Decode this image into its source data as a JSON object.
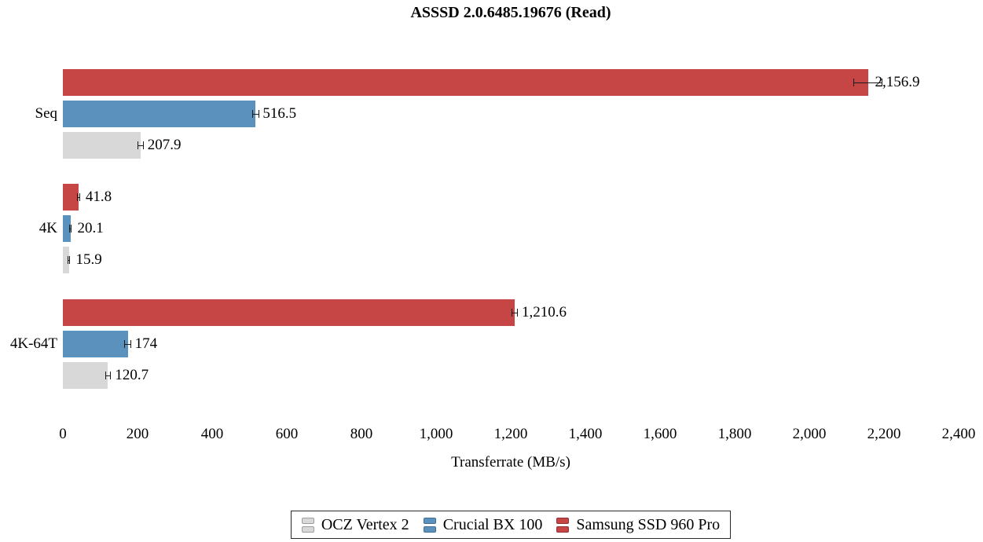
{
  "chart_data": {
    "type": "bar",
    "orientation": "horizontal",
    "title": "ASSSD 2.0.6485.19676 (Read)",
    "xlabel": "Transferrate (MB/s)",
    "xlim": [
      0,
      2400
    ],
    "xtick_values": [
      0,
      200,
      400,
      600,
      800,
      1000,
      1200,
      1400,
      1600,
      1800,
      2000,
      2200,
      2400
    ],
    "xtick_labels": [
      "0",
      "200",
      "400",
      "600",
      "800",
      "1,000",
      "1,200",
      "1,400",
      "1,600",
      "1,800",
      "2,000",
      "2,200",
      "2,400"
    ],
    "categories": [
      "Seq",
      "4K",
      "4K-64T"
    ],
    "series": [
      {
        "name": "OCZ Vertex 2",
        "color": "#d8d8d8",
        "edge_color": "#9e9e9e",
        "values": [
          207.9,
          15.9,
          120.7
        ],
        "labels": [
          "207.9",
          "15.9",
          "120.7"
        ],
        "errors": [
          8,
          4,
          8
        ]
      },
      {
        "name": "Crucial BX 100",
        "color": "#5b91bd",
        "edge_color": "#3e6e95",
        "values": [
          516.5,
          20.1,
          174
        ],
        "labels": [
          "516.5",
          "20.1",
          "174"
        ],
        "errors": [
          10,
          4,
          10
        ]
      },
      {
        "name": "Samsung SSD 960 Pro",
        "color": "#c64545",
        "edge_color": "#8f2f2f",
        "values": [
          2156.9,
          41.8,
          1210.6
        ],
        "labels": [
          "2,156.9",
          "41.8",
          "1,210.6"
        ],
        "errors": [
          38,
          4,
          8
        ]
      }
    ],
    "legend": [
      "OCZ Vertex 2",
      "Crucial BX 100",
      "Samsung SSD 960 Pro"
    ],
    "legend_position": "bottom-center",
    "grid": false,
    "background": "#ffffff"
  }
}
